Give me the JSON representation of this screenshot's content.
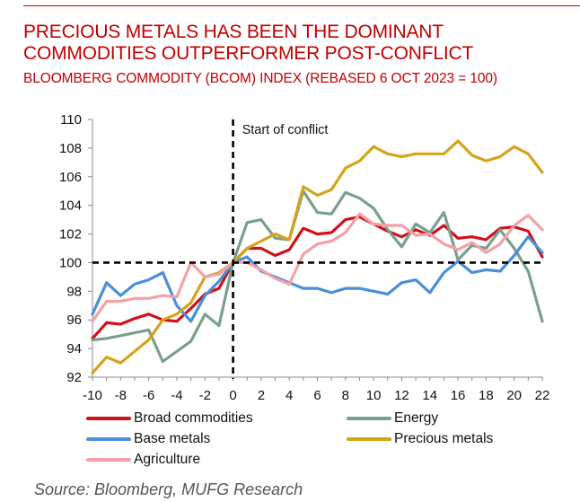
{
  "header": {
    "title_line1": "PRECIOUS METALS HAS BEEN THE DOMINANT",
    "title_line2": "COMMODITIES OUTPERFORMER POST-CONFLICT",
    "subtitle": "BLOOMBERG COMMODITY (BCOM) INDEX (REBASED 6 OCT 2023 = 100)"
  },
  "source": "Source: Bloomberg, MUFG Research",
  "colors": {
    "title": "#c00000",
    "broad": "#d0101a",
    "base": "#4a8fd8",
    "agri": "#f4a0a8",
    "energy": "#7aa08c",
    "precious": "#d4a419"
  },
  "chart_data": {
    "type": "line",
    "title": "BLOOMBERG COMMODITY (BCOM) INDEX (REBASED 6 OCT 2023 = 100)",
    "xlabel": "",
    "ylabel": "",
    "xlim": [
      -10,
      22
    ],
    "ylim": [
      92,
      110
    ],
    "x_ticks": [
      -10,
      -8,
      -6,
      -4,
      -2,
      0,
      2,
      4,
      6,
      8,
      10,
      12,
      14,
      16,
      18,
      20,
      22
    ],
    "y_ticks": [
      92,
      94,
      96,
      98,
      100,
      102,
      104,
      106,
      108,
      110
    ],
    "grid": false,
    "reference_lines": {
      "horizontal": 100,
      "vertical": 0
    },
    "annotation": "Start of conflict",
    "legend_position": "bottom",
    "x": [
      -10,
      -9,
      -8,
      -7,
      -6,
      -5,
      -4,
      -3,
      -2,
      -1,
      0,
      1,
      2,
      3,
      4,
      5,
      6,
      7,
      8,
      9,
      10,
      11,
      12,
      13,
      14,
      15,
      16,
      17,
      18,
      19,
      20,
      21,
      22
    ],
    "series": [
      {
        "key": "broad",
        "name": "Broad commodities",
        "values": [
          94.7,
          95.8,
          95.7,
          96.1,
          96.4,
          96.0,
          95.9,
          96.8,
          97.8,
          98.2,
          100,
          101.0,
          101.0,
          100.5,
          100.9,
          102.4,
          102.0,
          102.1,
          103.0,
          103.2,
          102.7,
          102.2,
          101.8,
          102.3,
          101.9,
          102.6,
          101.7,
          101.8,
          101.6,
          102.4,
          102.5,
          102.2,
          100.4
        ]
      },
      {
        "key": "energy",
        "name": "Energy",
        "values": [
          94.6,
          94.7,
          94.9,
          95.1,
          95.3,
          93.1,
          93.8,
          94.5,
          96.4,
          95.6,
          100,
          102.8,
          103.0,
          101.7,
          101.6,
          105.0,
          103.5,
          103.4,
          104.9,
          104.5,
          103.8,
          102.3,
          101.1,
          102.7,
          102.1,
          103.5,
          100.2,
          101.2,
          101.0,
          102.3,
          101.0,
          99.4,
          95.9
        ]
      },
      {
        "key": "base",
        "name": "Base metals",
        "values": [
          96.4,
          98.6,
          97.7,
          98.5,
          98.8,
          99.3,
          97.0,
          95.9,
          97.7,
          98.7,
          100,
          100.4,
          99.4,
          99.0,
          98.6,
          98.2,
          98.2,
          97.9,
          98.2,
          98.2,
          98.0,
          97.8,
          98.6,
          98.8,
          97.9,
          99.3,
          100.1,
          99.3,
          99.5,
          99.4,
          100.5,
          101.8,
          100.7
        ]
      },
      {
        "key": "precious",
        "name": "Precious metals",
        "values": [
          92.3,
          93.4,
          93.0,
          93.8,
          94.6,
          96.0,
          96.4,
          97.2,
          99.0,
          99.3,
          100,
          101.0,
          101.5,
          102.0,
          101.6,
          105.3,
          104.7,
          105.1,
          106.6,
          107.1,
          108.1,
          107.6,
          107.4,
          107.6,
          107.6,
          107.6,
          108.5,
          107.5,
          107.1,
          107.4,
          108.1,
          107.6,
          106.3
        ]
      },
      {
        "key": "agri",
        "name": "Agriculture",
        "values": [
          95.9,
          97.3,
          97.3,
          97.5,
          97.5,
          97.7,
          97.6,
          100.0,
          99.0,
          99.2,
          100,
          100.0,
          99.5,
          98.9,
          98.5,
          100.6,
          101.3,
          101.5,
          102.1,
          103.4,
          102.7,
          102.6,
          102.6,
          101.9,
          102.0,
          101.3,
          100.9,
          101.4,
          100.7,
          101.3,
          102.6,
          103.3,
          102.3
        ]
      }
    ]
  },
  "legend": [
    {
      "key": "broad",
      "label": "Broad commodities"
    },
    {
      "key": "energy",
      "label": "Energy"
    },
    {
      "key": "base",
      "label": "Base metals"
    },
    {
      "key": "precious",
      "label": "Precious metals"
    },
    {
      "key": "agri",
      "label": "Agriculture"
    }
  ]
}
